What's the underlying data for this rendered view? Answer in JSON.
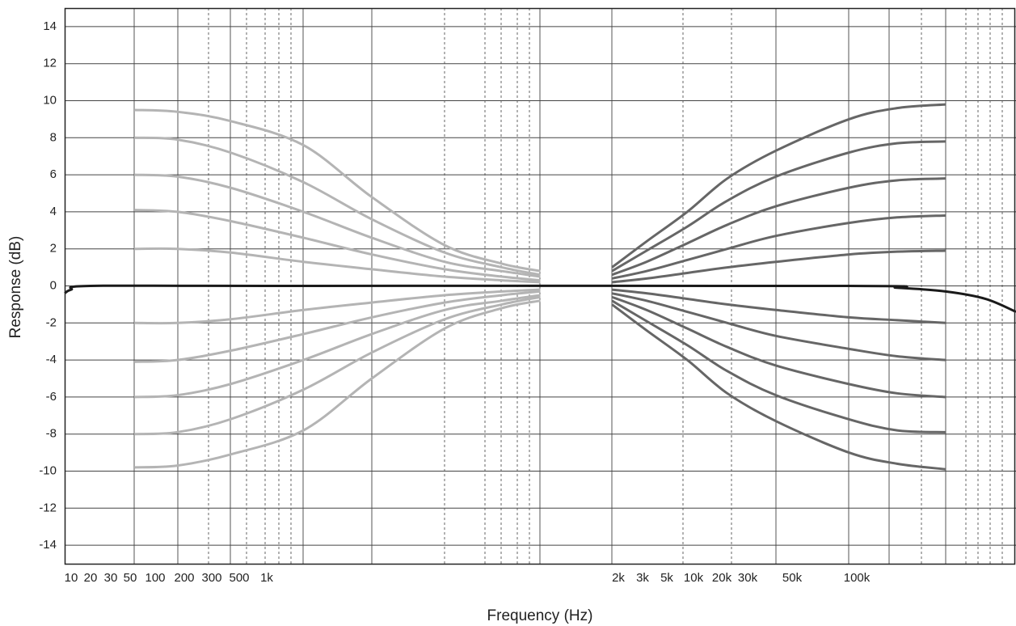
{
  "chart_data": {
    "type": "line",
    "xlabel": "Frequency (Hz)",
    "ylabel": "Response (dB)",
    "log_x": true,
    "grid": true,
    "xlim": [
      8,
      550000
    ],
    "ylim": [
      -15,
      15
    ],
    "xticks": [
      10,
      20,
      30,
      50,
      100,
      200,
      300,
      500,
      {
        "value": 1000,
        "label": "1k"
      },
      {
        "value": 2000,
        "label": "2k"
      },
      {
        "value": 3000,
        "label": "3k"
      },
      {
        "value": 5000,
        "label": "5k"
      },
      {
        "value": 10000,
        "label": "10k"
      },
      {
        "value": 20000,
        "label": "20k"
      },
      {
        "value": 30000,
        "label": "30k"
      },
      {
        "value": 50000,
        "label": "50k"
      },
      {
        "value": 100000,
        "label": "100k"
      }
    ],
    "yticks": [
      14,
      12,
      10,
      8,
      6,
      4,
      2,
      0,
      -2,
      -4,
      -6,
      -8,
      -10,
      -12,
      -14
    ],
    "series": [
      {
        "color": "#b4b4b4",
        "x": [
          56,
          170,
          425,
          1075,
          1230,
          1420,
          1590,
          1715
        ],
        "values": [
          9.5,
          9.4,
          8.9,
          7.6,
          4.8,
          2.2,
          1.2,
          0.8
        ]
      },
      {
        "color": "#b4b4b4",
        "x": [
          56,
          170,
          425,
          1075,
          1230,
          1420,
          1590,
          1715
        ],
        "values": [
          8.0,
          7.9,
          7.2,
          5.6,
          3.6,
          1.8,
          1.0,
          0.6
        ]
      },
      {
        "color": "#b4b4b4",
        "x": [
          56,
          170,
          425,
          1075,
          1230,
          1420,
          1590,
          1715
        ],
        "values": [
          6.0,
          5.9,
          5.3,
          4.0,
          2.6,
          1.3,
          0.8,
          0.5
        ]
      },
      {
        "color": "#b4b4b4",
        "x": [
          56,
          170,
          425,
          1075,
          1230,
          1420,
          1590,
          1715
        ],
        "values": [
          4.1,
          4.0,
          3.5,
          2.6,
          1.7,
          0.9,
          0.5,
          0.3
        ]
      },
      {
        "color": "#b4b4b4",
        "x": [
          56,
          170,
          425,
          1075,
          1230,
          1420,
          1590,
          1715
        ],
        "values": [
          2.0,
          2.0,
          1.8,
          1.3,
          0.9,
          0.5,
          0.3,
          0.2
        ]
      },
      {
        "color": "#b4b4b4",
        "x": [
          56,
          170,
          425,
          1075,
          1230,
          1420,
          1590,
          1715
        ],
        "values": [
          -2.0,
          -2.0,
          -1.8,
          -1.3,
          -0.9,
          -0.5,
          -0.3,
          -0.2
        ]
      },
      {
        "color": "#b4b4b4",
        "x": [
          56,
          170,
          425,
          1075,
          1230,
          1420,
          1590,
          1715
        ],
        "values": [
          -4.1,
          -4.0,
          -3.5,
          -2.6,
          -1.7,
          -0.9,
          -0.5,
          -0.3
        ]
      },
      {
        "color": "#b4b4b4",
        "x": [
          56,
          170,
          425,
          1075,
          1230,
          1420,
          1590,
          1715
        ],
        "values": [
          -6.0,
          -5.9,
          -5.3,
          -4.0,
          -2.6,
          -1.3,
          -0.8,
          -0.5
        ]
      },
      {
        "color": "#b4b4b4",
        "x": [
          56,
          170,
          425,
          1075,
          1230,
          1420,
          1590,
          1715
        ],
        "values": [
          -8.0,
          -7.9,
          -7.2,
          -5.6,
          -3.6,
          -1.8,
          -1.0,
          -0.6
        ]
      },
      {
        "color": "#b4b4b4",
        "x": [
          56,
          170,
          425,
          1075,
          1230,
          1420,
          1590,
          1715
        ],
        "values": [
          -9.8,
          -9.7,
          -9.1,
          -7.8,
          -5.0,
          -2.3,
          -1.2,
          -0.8
        ]
      },
      {
        "color": "#666666",
        "x": [
          1975,
          3260,
          8500,
          21800,
          41500,
          92000,
          154000,
          259000
        ],
        "values": [
          1.0,
          2.4,
          4.0,
          5.8,
          7.3,
          9.0,
          9.6,
          9.8
        ]
      },
      {
        "color": "#666666",
        "x": [
          1975,
          3260,
          8500,
          21800,
          41500,
          92000,
          154000,
          259000
        ],
        "values": [
          0.8,
          1.9,
          3.2,
          4.6,
          5.9,
          7.2,
          7.7,
          7.8
        ]
      },
      {
        "color": "#666666",
        "x": [
          1975,
          3260,
          8500,
          21800,
          41500,
          92000,
          154000,
          259000
        ],
        "values": [
          0.6,
          1.3,
          2.3,
          3.3,
          4.3,
          5.3,
          5.7,
          5.8
        ]
      },
      {
        "color": "#666666",
        "x": [
          1975,
          3260,
          8500,
          21800,
          41500,
          92000,
          154000,
          259000
        ],
        "values": [
          0.4,
          0.8,
          1.4,
          2.0,
          2.7,
          3.4,
          3.7,
          3.8
        ]
      },
      {
        "color": "#666666",
        "x": [
          1975,
          3260,
          8500,
          21800,
          41500,
          92000,
          154000,
          259000
        ],
        "values": [
          0.2,
          0.4,
          0.7,
          1.0,
          1.3,
          1.7,
          1.85,
          1.9
        ]
      },
      {
        "color": "#666666",
        "x": [
          1975,
          3260,
          8500,
          21800,
          41500,
          92000,
          154000,
          259000
        ],
        "values": [
          -0.2,
          -0.4,
          -0.7,
          -1.0,
          -1.3,
          -1.7,
          -1.85,
          -2.0
        ]
      },
      {
        "color": "#666666",
        "x": [
          1975,
          3260,
          8500,
          21800,
          41500,
          92000,
          154000,
          259000
        ],
        "values": [
          -0.4,
          -0.8,
          -1.4,
          -2.0,
          -2.7,
          -3.4,
          -3.8,
          -4.0
        ]
      },
      {
        "color": "#666666",
        "x": [
          1975,
          3260,
          8500,
          21800,
          41500,
          92000,
          154000,
          259000
        ],
        "values": [
          -0.6,
          -1.3,
          -2.3,
          -3.3,
          -4.3,
          -5.3,
          -5.8,
          -6.0
        ]
      },
      {
        "color": "#666666",
        "x": [
          1975,
          3260,
          8500,
          21800,
          41500,
          92000,
          154000,
          259000
        ],
        "values": [
          -0.8,
          -1.9,
          -3.2,
          -4.6,
          -5.9,
          -7.2,
          -7.8,
          -7.9
        ]
      },
      {
        "color": "#666666",
        "x": [
          1975,
          3260,
          8500,
          21800,
          41500,
          92000,
          154000,
          259000
        ],
        "values": [
          -1.0,
          -2.4,
          -4.0,
          -5.8,
          -7.3,
          -9.0,
          -9.6,
          -9.9
        ]
      },
      {
        "color": "#1a1a1a",
        "x": [
          8,
          10,
          20,
          1000,
          92000,
          154000,
          259000,
          397000,
          550000
        ],
        "values": [
          -0.4,
          -0.2,
          0,
          0,
          0,
          -0.1,
          -0.3,
          -0.7,
          -1.4
        ]
      }
    ]
  }
}
